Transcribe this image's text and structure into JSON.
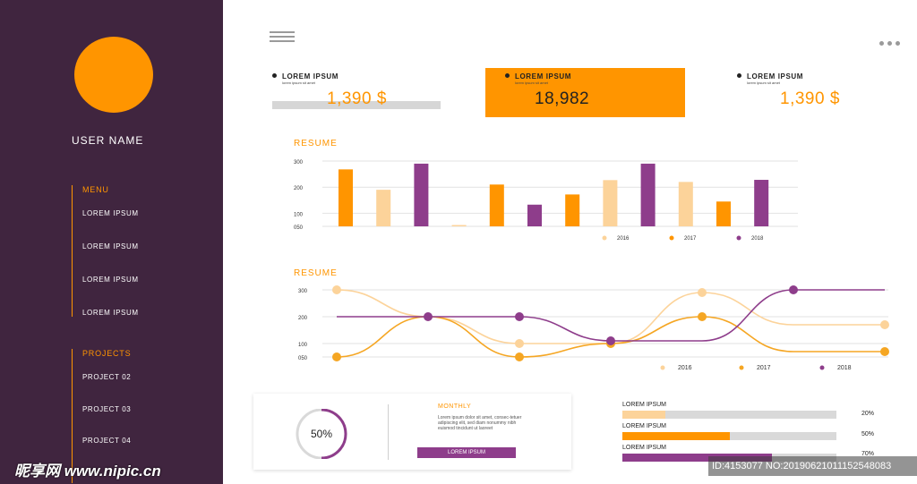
{
  "sidebar": {
    "username": "USER NAME",
    "menu_title": "MENU",
    "menu_items": [
      "LOREM IPSUM",
      "LOREM IPSUM",
      "LOREM IPSUM",
      "LOREM IPSUM"
    ],
    "projects_title": "PROJECTS",
    "project_items": [
      "PROJECT 02",
      "PROJECT 03",
      "PROJECT 04"
    ],
    "avatar_color": "#ff9500",
    "bg_color": "#40253f"
  },
  "topbar": {
    "menu_icon": "hamburger-icon",
    "more_icon": "more-dots-icon"
  },
  "stats": [
    {
      "label": "LOREM IPSUM",
      "sub": "lorem ipsum sit amet",
      "value": "1,390 $"
    },
    {
      "label": "LOREM IPSUM",
      "sub": "lorem ipsum sit amet",
      "value": "18,982"
    },
    {
      "label": "LOREM IPSUM",
      "sub": "lorem ipsum sit amet",
      "value": "1,390 $"
    }
  ],
  "chart_data": [
    {
      "type": "bar",
      "title": "RESUME",
      "y_ticks": [
        "300",
        "200",
        "100",
        "050"
      ],
      "ylim": [
        50,
        300
      ],
      "legend_position": "bottom-right",
      "series": [
        {
          "name": "2016",
          "color": "#fcd39a"
        },
        {
          "name": "2017",
          "color": "#ff9500"
        },
        {
          "name": "2018",
          "color": "#8e3d8b"
        }
      ],
      "bars": [
        {
          "series": "2017",
          "value": 268
        },
        {
          "series": "2016",
          "value": 190
        },
        {
          "series": "2018",
          "value": 290
        },
        {
          "series": "2016",
          "value": 55
        },
        {
          "series": "2017",
          "value": 210
        },
        {
          "series": "2018",
          "value": 133
        },
        {
          "series": "2017",
          "value": 172
        },
        {
          "series": "2016",
          "value": 227
        },
        {
          "series": "2018",
          "value": 290
        },
        {
          "series": "2016",
          "value": 220
        },
        {
          "series": "2017",
          "value": 145
        },
        {
          "series": "2018",
          "value": 228
        }
      ]
    },
    {
      "type": "line",
      "title": "RESUME",
      "y_ticks": [
        "300",
        "200",
        "100",
        "050"
      ],
      "ylim": [
        50,
        300
      ],
      "legend_position": "bottom-right",
      "x": [
        0,
        1,
        2,
        3,
        4,
        5,
        6
      ],
      "series": [
        {
          "name": "2016",
          "color": "#fcd39a",
          "values": [
            300,
            200,
            100,
            100,
            290,
            170,
            170
          ]
        },
        {
          "name": "2017",
          "color": "#f5a623",
          "values": [
            50,
            200,
            50,
            100,
            200,
            70,
            70
          ]
        },
        {
          "name": "2018",
          "color": "#8e3d8b",
          "values": [
            200,
            200,
            200,
            110,
            110,
            300,
            300
          ]
        }
      ]
    }
  ],
  "donut": {
    "percent": 50,
    "label": "50%"
  },
  "monthly": {
    "title": "MONTHLY",
    "text": "Lorem ipsum dolor sit amet, consec-tetuer adipiscing elit, sed diam nonummy nibh euismod tincidunt ut laoreet",
    "button": "LOREM IPSUM"
  },
  "progress": [
    {
      "label": "LOREM IPSUM",
      "percent": 20,
      "value_label": "20%",
      "color": "#fcd39a"
    },
    {
      "label": "LOREM IPSUM",
      "percent": 50,
      "value_label": "50%",
      "color": "#ff9500"
    },
    {
      "label": "LOREM IPSUM",
      "percent": 70,
      "value_label": "70%",
      "color": "#8e3d8b"
    }
  ],
  "watermark": "昵享网 www.nipic.cn",
  "image_id": "ID:4153077 NO:20190621011152548083"
}
